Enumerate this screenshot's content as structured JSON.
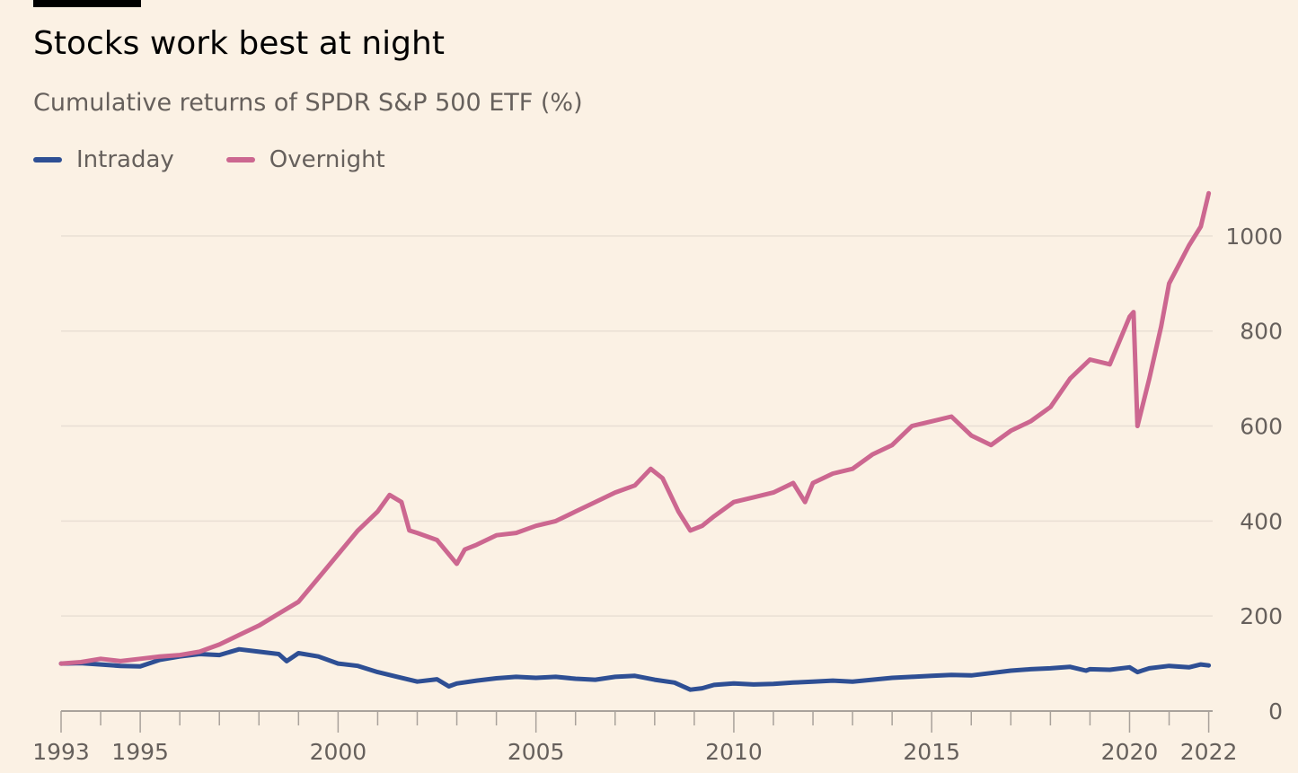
{
  "header": {
    "title": "Stocks work best at night",
    "subtitle": "Cumulative returns of SPDR S&P 500 ETF (%)"
  },
  "legend": [
    {
      "name": "Intraday",
      "color": "#2e4f94"
    },
    {
      "name": "Overnight",
      "color": "#cc6790"
    }
  ],
  "colors": {
    "background": "#fbf1e4",
    "gridline": "#e9dfd4",
    "axis": "#66605c",
    "intraday": "#2e4f94",
    "overnight": "#cc6790"
  },
  "chart_data": {
    "type": "line",
    "title": "Stocks work best at night",
    "subtitle": "Cumulative returns of SPDR S&P 500 ETF (%)",
    "xlabel": "",
    "ylabel": "",
    "xlim": [
      1993.0,
      2022.1
    ],
    "ylim": [
      0,
      1100
    ],
    "y_ticks": [
      0,
      200,
      400,
      600,
      800,
      1000
    ],
    "x_tick_labels": [
      "1993",
      "1995",
      "2000",
      "2005",
      "2010",
      "2015",
      "2020",
      "2022"
    ],
    "x_tick_values": [
      1993,
      1995,
      2000,
      2005,
      2010,
      2015,
      2020,
      2022
    ],
    "grid": "horizontal",
    "y_axis_side": "right",
    "legend_position": "top-left",
    "series": [
      {
        "name": "Intraday",
        "color": "#2e4f94",
        "x": [
          1993.0,
          1993.5,
          1994.0,
          1994.5,
          1995.0,
          1995.5,
          1996.0,
          1996.5,
          1997.0,
          1997.5,
          1998.0,
          1998.5,
          1998.7,
          1999.0,
          1999.5,
          2000.0,
          2000.5,
          2001.0,
          2001.5,
          2002.0,
          2002.5,
          2002.8,
          2003.0,
          2003.5,
          2004.0,
          2004.5,
          2005.0,
          2005.5,
          2006.0,
          2006.5,
          2007.0,
          2007.5,
          2008.0,
          2008.5,
          2008.9,
          2009.2,
          2009.5,
          2010.0,
          2010.5,
          2011.0,
          2011.5,
          2012.0,
          2012.5,
          2013.0,
          2013.5,
          2014.0,
          2014.5,
          2015.0,
          2015.5,
          2016.0,
          2016.5,
          2017.0,
          2017.5,
          2018.0,
          2018.5,
          2018.9,
          2019.0,
          2019.5,
          2020.0,
          2020.2,
          2020.5,
          2021.0,
          2021.5,
          2021.8,
          2022.0
        ],
        "values": [
          100,
          101,
          98,
          95,
          94,
          108,
          115,
          120,
          118,
          130,
          125,
          120,
          105,
          122,
          115,
          100,
          95,
          82,
          72,
          62,
          67,
          52,
          58,
          64,
          69,
          72,
          70,
          72,
          68,
          66,
          72,
          74,
          66,
          60,
          45,
          48,
          55,
          58,
          56,
          57,
          60,
          62,
          64,
          62,
          66,
          70,
          72,
          74,
          76,
          75,
          80,
          85,
          88,
          90,
          93,
          85,
          88,
          87,
          92,
          82,
          90,
          95,
          92,
          98,
          96
        ]
      },
      {
        "name": "Overnight",
        "color": "#cc6790",
        "x": [
          1993.0,
          1993.5,
          1994.0,
          1994.5,
          1995.0,
          1995.5,
          1996.0,
          1996.5,
          1997.0,
          1997.5,
          1998.0,
          1998.5,
          1999.0,
          1999.5,
          2000.0,
          2000.5,
          2001.0,
          2001.3,
          2001.6,
          2001.8,
          2002.0,
          2002.5,
          2003.0,
          2003.2,
          2003.5,
          2004.0,
          2004.5,
          2005.0,
          2005.5,
          2006.0,
          2006.5,
          2007.0,
          2007.5,
          2007.9,
          2008.2,
          2008.6,
          2008.9,
          2009.2,
          2009.5,
          2010.0,
          2010.5,
          2011.0,
          2011.5,
          2011.8,
          2012.0,
          2012.5,
          2013.0,
          2013.5,
          2014.0,
          2014.5,
          2015.0,
          2015.5,
          2016.0,
          2016.5,
          2017.0,
          2017.5,
          2018.0,
          2018.5,
          2019.0,
          2019.5,
          2020.0,
          2020.1,
          2020.2,
          2020.5,
          2020.8,
          2021.0,
          2021.5,
          2021.8,
          2022.0
        ],
        "values": [
          100,
          103,
          110,
          105,
          110,
          115,
          118,
          125,
          140,
          160,
          180,
          205,
          230,
          280,
          330,
          380,
          420,
          455,
          440,
          380,
          375,
          360,
          310,
          340,
          350,
          370,
          375,
          390,
          400,
          420,
          440,
          460,
          475,
          510,
          490,
          420,
          380,
          390,
          410,
          440,
          450,
          460,
          480,
          440,
          480,
          500,
          510,
          540,
          560,
          600,
          610,
          620,
          580,
          560,
          590,
          610,
          640,
          700,
          740,
          730,
          830,
          840,
          600,
          700,
          810,
          900,
          980,
          1020,
          1090
        ]
      }
    ]
  }
}
